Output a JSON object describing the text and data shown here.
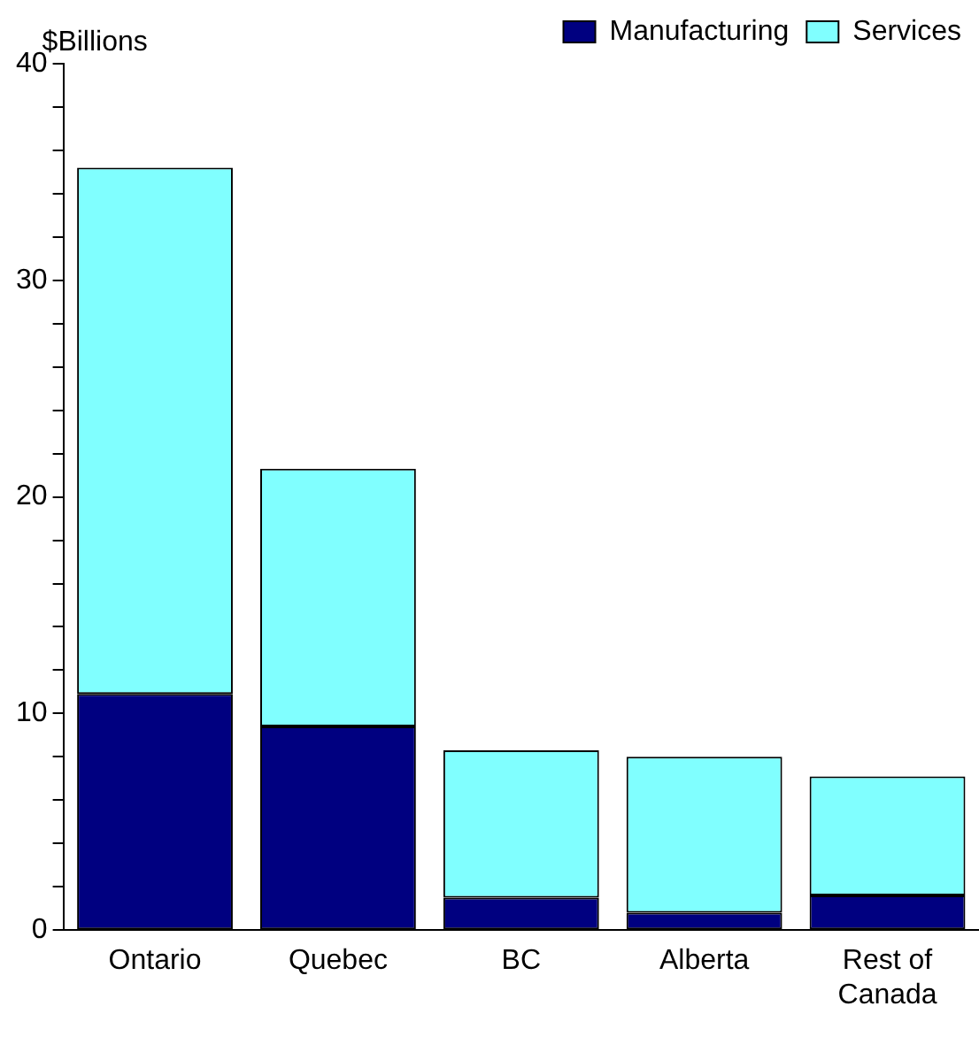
{
  "chart_data": {
    "type": "bar",
    "ylabel": "$Billions",
    "stacked": true,
    "legend": "top right",
    "grid": false,
    "categories": [
      "Ontario",
      "Quebec",
      "BC",
      "Alberta",
      "Rest of Canada"
    ],
    "series": [
      {
        "name": "Manufacturing",
        "color": "#000080",
        "values": [
          10.9,
          9.4,
          1.5,
          0.8,
          1.6
        ]
      },
      {
        "name": "Services",
        "color": "#80ffff",
        "values": [
          24.3,
          11.9,
          6.8,
          7.2,
          5.5
        ]
      }
    ],
    "ylim": [
      0,
      40
    ],
    "yticks": [
      0,
      {
        "value": 2,
        "label": null
      },
      {
        "value": 4,
        "label": null
      },
      {
        "value": 6,
        "label": null
      },
      {
        "value": 8,
        "label": null
      },
      10,
      {
        "value": 12,
        "label": null
      },
      {
        "value": 14,
        "label": null
      },
      {
        "value": 16,
        "label": null
      },
      {
        "value": 18,
        "label": null
      },
      20,
      {
        "value": 22,
        "label": null
      },
      {
        "value": 24,
        "label": null
      },
      {
        "value": 26,
        "label": null
      },
      {
        "value": 28,
        "label": null
      },
      30,
      {
        "value": 32,
        "label": null
      },
      {
        "value": 34,
        "label": null
      },
      {
        "value": 36,
        "label": null
      },
      {
        "value": 38,
        "label": null
      },
      40
    ]
  }
}
